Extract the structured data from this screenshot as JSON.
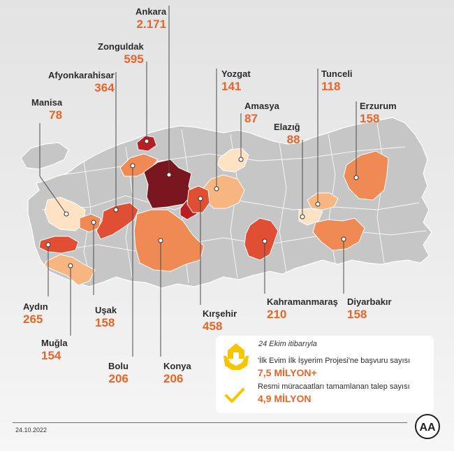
{
  "date_note": "24 Ekim itibarıyla",
  "info": {
    "line1": "'İlk Evim İlk İşyerim Projesi'ne başvuru sayısı",
    "value1": "7,5 MİLYON+",
    "line2": "Resmi müracaatları tamamlanan talep sayısı",
    "value2": "4,9 MİLYON"
  },
  "footer": {
    "date": "24.10.2022",
    "logo_text": "AA"
  },
  "colors": {
    "accent": "#e8652a",
    "level_highest": "#7a1620",
    "level_very_high": "#b81e22",
    "level_high": "#e04e34",
    "level_mid": "#f08a55",
    "level_low": "#f6b581",
    "level_lowest": "#fde3c4",
    "base_map": "#c4c4c4",
    "icon_yellow": "#f7c400"
  },
  "chart_data": {
    "type": "choropleth",
    "title": "",
    "provinces": [
      {
        "name": "Ankara",
        "value": "2.171"
      },
      {
        "name": "Zonguldak",
        "value": "595"
      },
      {
        "name": "Afyonkarahisar",
        "value": "364"
      },
      {
        "name": "Manisa",
        "value": "78"
      },
      {
        "name": "Yozgat",
        "value": "141"
      },
      {
        "name": "Amasya",
        "value": "87"
      },
      {
        "name": "Tunceli",
        "value": "118"
      },
      {
        "name": "Elazığ",
        "value": "88"
      },
      {
        "name": "Erzurum",
        "value": "158"
      },
      {
        "name": "Aydın",
        "value": "265"
      },
      {
        "name": "Uşak",
        "value": "158"
      },
      {
        "name": "Muğla",
        "value": "154"
      },
      {
        "name": "Bolu",
        "value": "206"
      },
      {
        "name": "Konya",
        "value": "206"
      },
      {
        "name": "Kırşehir",
        "value": "458"
      },
      {
        "name": "Kahramanmaraş",
        "value": "210"
      },
      {
        "name": "Diyarbakır",
        "value": "158"
      }
    ]
  }
}
